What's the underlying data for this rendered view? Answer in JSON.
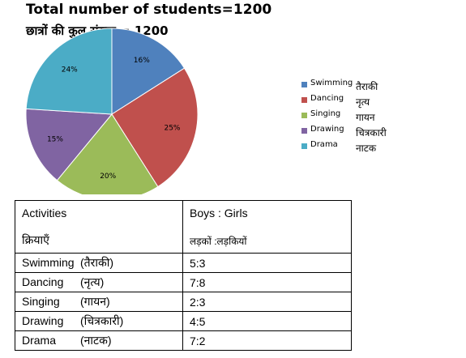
{
  "title_en": "Total number of students=1200",
  "title_hi": "छात्रों की कुल संख्या = 1200",
  "chart_data": {
    "type": "pie",
    "title": "Total number of students=1200",
    "slices": [
      {
        "label": "Swimming",
        "label_hi": "तैराकी",
        "value": 16,
        "display": "16%",
        "color": "#4f81bd"
      },
      {
        "label": "Dancing",
        "label_hi": "नृत्य",
        "value": 25,
        "display": "25%",
        "color": "#c0504d"
      },
      {
        "label": "Singing",
        "label_hi": "गायन",
        "value": 20,
        "display": "20%",
        "color": "#9bbb59"
      },
      {
        "label": "Drawing",
        "label_hi": "चित्रकारी",
        "value": 15,
        "display": "15%",
        "color": "#8064a2"
      },
      {
        "label": "Drama",
        "label_hi": "नाटक",
        "value": 24,
        "display": "24%",
        "color": "#4bacc6"
      }
    ],
    "legend_position": "right"
  },
  "table": {
    "header": {
      "col1_en": "Activities",
      "col1_hi": "क्रियाएँ",
      "col2_en": "Boys : Girls",
      "col2_hi": "लड़कों :लड़कियों"
    },
    "rows": [
      {
        "activity": "Swimming",
        "activity_hi": "(तैराकी)",
        "ratio": "5:3"
      },
      {
        "activity": "Dancing",
        "activity_hi": "(नृत्य)",
        "ratio": "7:8"
      },
      {
        "activity": "Singing",
        "activity_hi": "(गायन)",
        "ratio": "2:3"
      },
      {
        "activity": "Drawing",
        "activity_hi": "(चित्रकारी)",
        "ratio": "4:5"
      },
      {
        "activity": "Drama",
        "activity_hi": "(नाटक)",
        "ratio": "7:2"
      }
    ]
  }
}
